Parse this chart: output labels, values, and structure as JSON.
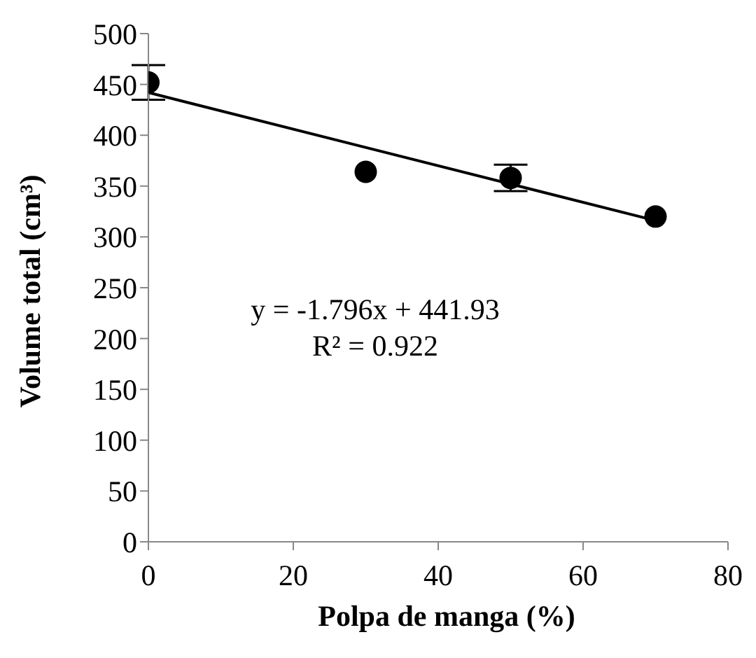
{
  "chart_data": {
    "type": "scatter",
    "xlabel": "Polpa de manga (%)",
    "ylabel": "Volume total (cm³)",
    "series": [
      {
        "color": "#000000",
        "x": [
          0,
          30,
          50,
          70
        ],
        "values": [
          452,
          364,
          358,
          320
        ],
        "errors": [
          17,
          null,
          13,
          null
        ],
        "marker": "circle"
      },
      {
        "type": "line",
        "color": "#000000",
        "x": [
          0,
          70
        ],
        "values": [
          442,
          316
        ],
        "marker": "none",
        "line_style": "solid"
      }
    ],
    "annotations": [
      "y = -1.796x + 441.93",
      "R² = 0.922"
    ],
    "xlim": [
      0,
      80
    ],
    "xticks": [
      0,
      20,
      40,
      60,
      80
    ],
    "ylim": [
      0,
      500
    ],
    "yticks": [
      0,
      50,
      100,
      150,
      200,
      250,
      300,
      350,
      400,
      450,
      500
    ],
    "grid": false,
    "legend": false
  }
}
